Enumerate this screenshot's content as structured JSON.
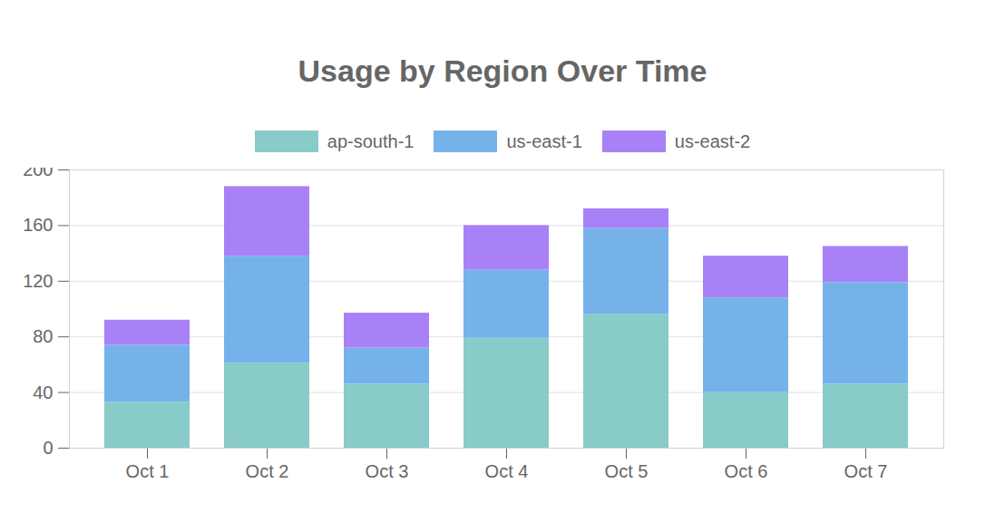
{
  "chart_data": {
    "type": "bar",
    "stacked": true,
    "title": "Usage by Region Over Time",
    "categories": [
      "Oct 1",
      "Oct 2",
      "Oct 3",
      "Oct 4",
      "Oct 5",
      "Oct 6",
      "Oct 7"
    ],
    "series": [
      {
        "name": "ap-south-1",
        "color": "#88cbc8",
        "values": [
          33,
          61,
          46,
          79,
          96,
          40,
          46
        ]
      },
      {
        "name": "us-east-1",
        "color": "#76b2ea",
        "values": [
          41,
          77,
          26,
          49,
          62,
          68,
          73
        ]
      },
      {
        "name": "us-east-2",
        "color": "#a881f7",
        "values": [
          18,
          50,
          25,
          32,
          14,
          30,
          26
        ]
      }
    ],
    "ylim": [
      0,
      200
    ],
    "yticks": [
      0,
      40,
      80,
      120,
      160,
      200
    ],
    "grid": true,
    "legend": "top"
  }
}
